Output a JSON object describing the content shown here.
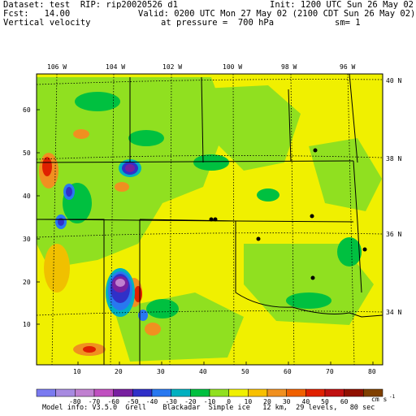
{
  "header": {
    "dataset_line": "Dataset: test  RIP: rip20020526 d1",
    "init_line": "Init: 1200 UTC Sun 26 May 02",
    "fcst_line": "Fcst:   14.00",
    "valid_line": "Valid: 0200 UTC Mon 27 May 02 (2100 CDT Sun 26 May 02)",
    "field_name": "Vertical velocity",
    "pressure_line": "at pressure =  700 hPa",
    "sm_line": "sm= 1"
  },
  "map": {
    "lon_labels": [
      "106 W",
      "104 W",
      "102 W",
      "100 W",
      "98 W",
      "96 W"
    ],
    "lat_labels": [
      "40 N",
      "38 N",
      "36 N",
      "34 N"
    ],
    "y_ticks": [
      "60",
      "50",
      "40",
      "30",
      "20",
      "10"
    ],
    "x_ticks": [
      "10",
      "20",
      "30",
      "40",
      "50",
      "60",
      "70",
      "80"
    ]
  },
  "colorbar": {
    "labels": [
      "-80",
      "-70",
      "-60",
      "-50",
      "-40",
      "-30",
      "-20",
      "-10",
      "0",
      "10",
      "20",
      "30",
      "40",
      "50",
      "60"
    ],
    "units": "cm s",
    "units_exp": "-1",
    "colors": [
      "#7a7af0",
      "#a78ae0",
      "#c080d0",
      "#c050c0",
      "#7820a0",
      "#3030c8",
      "#2878f0",
      "#00b0c0",
      "#00c040",
      "#90e020",
      "#f0f000",
      "#f8c000",
      "#f09020",
      "#f06000",
      "#e02000",
      "#c01010",
      "#901000",
      "#804000"
    ]
  },
  "footer": {
    "model_info": "Model info: V3.5.0  Grell    Blackadar  Simple ice   12 km,  29 levels,   80 sec"
  }
}
